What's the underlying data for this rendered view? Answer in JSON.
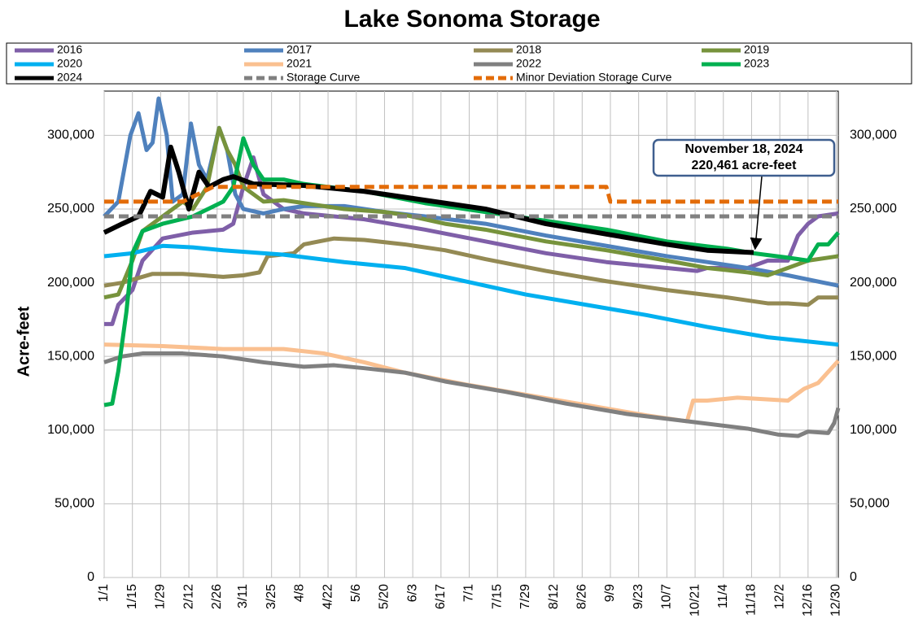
{
  "chart_data": {
    "type": "line",
    "title": "Lake Sonoma Storage",
    "ylabel": "Acre-feet",
    "xlim": [
      1,
      365
    ],
    "xticks": [
      {
        "value": 1,
        "label": "1/1"
      },
      {
        "value": 15,
        "label": "1/15"
      },
      {
        "value": 29,
        "label": "1/29"
      },
      {
        "value": 43,
        "label": "2/12"
      },
      {
        "value": 57,
        "label": "2/26"
      },
      {
        "value": 70,
        "label": "3/11"
      },
      {
        "value": 84,
        "label": "3/25"
      },
      {
        "value": 98,
        "label": "4/8"
      },
      {
        "value": 112,
        "label": "4/22"
      },
      {
        "value": 126,
        "label": "5/6"
      },
      {
        "value": 140,
        "label": "5/20"
      },
      {
        "value": 154,
        "label": "6/3"
      },
      {
        "value": 168,
        "label": "6/17"
      },
      {
        "value": 182,
        "label": "7/1"
      },
      {
        "value": 196,
        "label": "7/15"
      },
      {
        "value": 210,
        "label": "7/29"
      },
      {
        "value": 224,
        "label": "8/12"
      },
      {
        "value": 238,
        "label": "8/26"
      },
      {
        "value": 252,
        "label": "9/9"
      },
      {
        "value": 266,
        "label": "9/23"
      },
      {
        "value": 280,
        "label": "10/7"
      },
      {
        "value": 294,
        "label": "10/21"
      },
      {
        "value": 308,
        "label": "11/4"
      },
      {
        "value": 322,
        "label": "11/18"
      },
      {
        "value": 336,
        "label": "12/2"
      },
      {
        "value": 350,
        "label": "12/16"
      },
      {
        "value": 364,
        "label": "12/30"
      }
    ],
    "ylim": [
      0,
      330000
    ],
    "yticks": [
      0,
      {
        "value": 50000,
        "label": "50,000"
      },
      {
        "value": 100000,
        "label": "100,000"
      },
      {
        "value": 150000,
        "label": "150,000"
      },
      {
        "value": 200000,
        "label": "200,000"
      },
      {
        "value": 250000,
        "label": "250,000"
      },
      {
        "value": 300000,
        "label": "300,000"
      }
    ],
    "grid": true,
    "annotation": {
      "lines": [
        "November 18, 2024",
        "220,461 acre-feet"
      ],
      "x": 323,
      "y": 220461
    },
    "series": [
      {
        "name": "2016",
        "color": "#7f5fa8",
        "x": [
          1,
          5,
          8,
          15,
          20,
          30,
          45,
          60,
          65,
          70,
          75,
          80,
          90,
          100,
          130,
          160,
          190,
          220,
          250,
          280,
          295,
          300,
          320,
          330,
          340,
          345,
          350,
          355,
          365
        ],
        "values": [
          172000,
          172000,
          185000,
          195000,
          215000,
          230000,
          234000,
          236000,
          240000,
          265000,
          285000,
          260000,
          250000,
          247000,
          243000,
          236000,
          228000,
          220000,
          214000,
          210000,
          208000,
          210000,
          210000,
          215000,
          215000,
          232000,
          240000,
          245000,
          247000
        ]
      },
      {
        "name": "2017",
        "color": "#4f81bd",
        "x": [
          1,
          8,
          14,
          18,
          22,
          25,
          28,
          32,
          35,
          40,
          44,
          48,
          52,
          58,
          62,
          66,
          70,
          80,
          90,
          100,
          120,
          140,
          160,
          190,
          220,
          250,
          280,
          300,
          320,
          340,
          365
        ],
        "values": [
          245000,
          255000,
          300000,
          315000,
          290000,
          295000,
          325000,
          300000,
          255000,
          260000,
          308000,
          280000,
          270000,
          305000,
          290000,
          260000,
          250000,
          247000,
          250000,
          252000,
          252000,
          248000,
          245000,
          240000,
          232000,
          225000,
          218000,
          214000,
          210000,
          205000,
          198000
        ]
      },
      {
        "name": "2018",
        "color": "#948a54",
        "x": [
          1,
          10,
          15,
          25,
          40,
          60,
          70,
          78,
          82,
          95,
          100,
          115,
          130,
          150,
          170,
          190,
          220,
          250,
          280,
          310,
          330,
          340,
          350,
          355,
          365
        ],
        "values": [
          198000,
          200000,
          202000,
          206000,
          206000,
          204000,
          205000,
          207000,
          218000,
          220000,
          226000,
          230000,
          229000,
          226000,
          222000,
          216000,
          208000,
          201000,
          195000,
          190000,
          186000,
          186000,
          185000,
          190000,
          190000
        ]
      },
      {
        "name": "2019",
        "color": "#77933c",
        "x": [
          1,
          8,
          15,
          20,
          30,
          40,
          45,
          52,
          58,
          62,
          66,
          70,
          80,
          90,
          100,
          120,
          140,
          150,
          170,
          190,
          220,
          250,
          280,
          300,
          320,
          330,
          340,
          350,
          365
        ],
        "values": [
          190000,
          192000,
          215000,
          235000,
          245000,
          255000,
          250000,
          265000,
          305000,
          290000,
          280000,
          265000,
          255000,
          256000,
          254000,
          250000,
          248000,
          246000,
          240000,
          236000,
          228000,
          222000,
          215000,
          210000,
          207000,
          205000,
          210000,
          215000,
          218000
        ]
      },
      {
        "name": "2020",
        "color": "#00b0f0",
        "x": [
          1,
          15,
          30,
          45,
          60,
          90,
          120,
          150,
          180,
          210,
          240,
          270,
          300,
          330,
          365
        ],
        "values": [
          218000,
          220000,
          225000,
          224000,
          222000,
          219000,
          214000,
          210000,
          201000,
          192000,
          185000,
          178000,
          170000,
          163000,
          158000
        ]
      },
      {
        "name": "2021",
        "color": "#fac090",
        "x": [
          1,
          30,
          60,
          90,
          110,
          130,
          150,
          180,
          210,
          240,
          270,
          290,
          293,
          300,
          315,
          340,
          348,
          355,
          365
        ],
        "values": [
          158000,
          157000,
          155000,
          155000,
          152000,
          146000,
          139000,
          131000,
          124000,
          117000,
          110000,
          106000,
          120000,
          120000,
          122000,
          120000,
          128000,
          132000,
          147000
        ]
      },
      {
        "name": "2022",
        "color": "#808080",
        "x": [
          1,
          10,
          20,
          40,
          60,
          80,
          100,
          115,
          130,
          150,
          170,
          200,
          230,
          260,
          290,
          320,
          335,
          345,
          350,
          360,
          363,
          365
        ],
        "values": [
          146000,
          150000,
          152000,
          152000,
          150000,
          146000,
          143000,
          144000,
          142000,
          139000,
          133000,
          126000,
          118000,
          111000,
          106000,
          101000,
          97000,
          96000,
          99000,
          98000,
          105000,
          115000
        ]
      },
      {
        "name": "2023",
        "color": "#00b050",
        "x": [
          1,
          5,
          8,
          12,
          15,
          20,
          30,
          45,
          60,
          65,
          70,
          75,
          80,
          90,
          100,
          130,
          160,
          190,
          220,
          250,
          280,
          310,
          323,
          340,
          350,
          355,
          360,
          365
        ],
        "values": [
          117000,
          118000,
          140000,
          180000,
          220000,
          235000,
          240000,
          245000,
          255000,
          265000,
          298000,
          280000,
          270000,
          270000,
          267000,
          262000,
          254000,
          248000,
          242000,
          236000,
          228000,
          223000,
          220000,
          217000,
          215000,
          226000,
          226000,
          234000
        ]
      },
      {
        "name": "2024",
        "color": "#000000",
        "x": [
          1,
          10,
          18,
          24,
          30,
          34,
          38,
          43,
          48,
          53,
          60,
          65,
          75,
          100,
          130,
          160,
          190,
          220,
          250,
          280,
          300,
          323
        ],
        "values": [
          234000,
          240000,
          245000,
          262000,
          258000,
          292000,
          275000,
          250000,
          275000,
          265000,
          270000,
          272000,
          267000,
          266000,
          262000,
          256000,
          250000,
          240000,
          233000,
          226000,
          222000,
          220461
        ]
      },
      {
        "name": "Storage Curve",
        "color": "#808080",
        "dashed": true,
        "x": [
          1,
          365
        ],
        "values": [
          245000,
          245000
        ]
      },
      {
        "name": "Minor Deviation Storage Curve",
        "color": "#e36c09",
        "dashed": true,
        "x": [
          1,
          40,
          55,
          70,
          250,
          252,
          365
        ],
        "values": [
          255000,
          255000,
          265000,
          265000,
          265000,
          255000,
          255000
        ]
      }
    ]
  }
}
